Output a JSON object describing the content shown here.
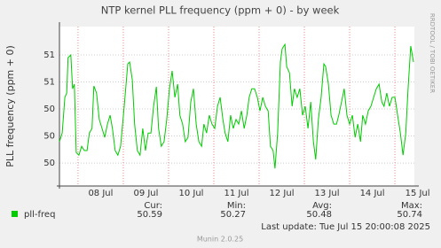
{
  "chart_data": {
    "type": "line",
    "title": "NTP kernel PLL frequency (ppm + 0) - by week",
    "y_label": "PLL frequency (ppm + 0)",
    "side_text": "RRDTOOL / TOBI OETIKER",
    "footer": "Munin 2.0.25",
    "last_update": "Last update: Tue Jul 15 20:00:08 2025",
    "xlim": [
      7.59,
      15.43
    ],
    "xticks": [
      {
        "value": 8.5,
        "label": "08 Jul"
      },
      {
        "value": 9.5,
        "label": "09 Jul"
      },
      {
        "value": 10.5,
        "label": "10 Jul"
      },
      {
        "value": 11.5,
        "label": "11 Jul"
      },
      {
        "value": 12.5,
        "label": "12 Jul"
      },
      {
        "value": 13.5,
        "label": "13 Jul"
      },
      {
        "value": 14.5,
        "label": "14 Jul"
      },
      {
        "value": 15.5,
        "label": "15 Jul"
      }
    ],
    "xgrid": [
      8,
      9,
      10,
      11,
      12,
      13,
      14,
      15
    ],
    "ylim": [
      50.215,
      50.805
    ],
    "yticks": [
      {
        "value": 50.7,
        "label": "51"
      },
      {
        "value": 50.6,
        "label": "51"
      },
      {
        "value": 50.5,
        "label": "50"
      },
      {
        "value": 50.4,
        "label": "50"
      },
      {
        "value": 50.3,
        "label": "50"
      }
    ],
    "grid": true,
    "x": [
      7.59,
      7.65,
      7.71,
      7.75,
      7.78,
      7.84,
      7.88,
      7.92,
      7.96,
      8.02,
      8.08,
      8.14,
      8.2,
      8.25,
      8.31,
      8.35,
      8.41,
      8.47,
      8.53,
      8.59,
      8.65,
      8.71,
      8.76,
      8.82,
      8.88,
      8.94,
      9.02,
      9.1,
      9.14,
      9.2,
      9.25,
      9.31,
      9.37,
      9.43,
      9.49,
      9.55,
      9.61,
      9.67,
      9.73,
      9.78,
      9.84,
      9.9,
      9.96,
      10.02,
      10.08,
      10.14,
      10.2,
      10.25,
      10.31,
      10.37,
      10.43,
      10.49,
      10.55,
      10.61,
      10.67,
      10.73,
      10.78,
      10.84,
      10.9,
      10.96,
      11.02,
      11.08,
      11.14,
      11.2,
      11.25,
      11.31,
      11.37,
      11.43,
      11.49,
      11.55,
      11.61,
      11.67,
      11.73,
      11.78,
      11.84,
      11.9,
      11.96,
      12.02,
      12.08,
      12.14,
      12.2,
      12.25,
      12.31,
      12.35,
      12.41,
      12.47,
      12.51,
      12.57,
      12.61,
      12.67,
      12.73,
      12.78,
      12.84,
      12.9,
      12.96,
      13.02,
      13.08,
      13.14,
      13.2,
      13.25,
      13.31,
      13.37,
      13.43,
      13.47,
      13.53,
      13.59,
      13.65,
      13.71,
      13.76,
      13.82,
      13.88,
      13.94,
      14.0,
      14.06,
      14.12,
      14.18,
      14.24,
      14.29,
      14.35,
      14.41,
      14.47,
      14.53,
      14.59,
      14.65,
      14.71,
      14.76,
      14.82,
      14.88,
      14.94,
      15.0,
      15.06,
      15.12,
      15.18,
      15.24,
      15.29,
      15.35,
      15.41
    ],
    "series": [
      {
        "name": "pll-freq",
        "color": "#00cc00",
        "values": [
          50.379,
          50.411,
          50.543,
          50.559,
          50.69,
          50.7,
          50.575,
          50.592,
          50.339,
          50.329,
          50.362,
          50.346,
          50.346,
          50.411,
          50.428,
          50.585,
          50.559,
          50.461,
          50.428,
          50.395,
          50.444,
          50.477,
          50.428,
          50.346,
          50.329,
          50.362,
          50.51,
          50.667,
          50.674,
          50.608,
          50.444,
          50.346,
          50.329,
          50.428,
          50.346,
          50.411,
          50.411,
          50.51,
          50.582,
          50.428,
          50.362,
          50.379,
          50.461,
          50.575,
          50.641,
          50.543,
          50.592,
          50.477,
          50.444,
          50.379,
          50.395,
          50.526,
          50.575,
          50.444,
          50.379,
          50.362,
          50.444,
          50.411,
          50.477,
          50.444,
          50.428,
          50.51,
          50.543,
          50.461,
          50.411,
          50.379,
          50.477,
          50.428,
          50.461,
          50.444,
          50.493,
          50.428,
          50.477,
          50.543,
          50.575,
          50.575,
          50.543,
          50.493,
          50.543,
          50.51,
          50.493,
          50.362,
          50.346,
          50.28,
          50.411,
          50.674,
          50.723,
          50.739,
          50.657,
          50.634,
          50.51,
          50.575,
          50.543,
          50.575,
          50.477,
          50.51,
          50.428,
          50.526,
          50.379,
          50.313,
          50.461,
          50.543,
          50.667,
          50.657,
          50.592,
          50.477,
          50.444,
          50.444,
          50.477,
          50.526,
          50.575,
          50.477,
          50.444,
          50.477,
          50.395,
          50.444,
          50.379,
          50.477,
          50.444,
          50.493,
          50.51,
          50.543,
          50.575,
          50.592,
          50.526,
          50.51,
          50.559,
          50.51,
          50.543,
          50.543,
          50.477,
          50.411,
          50.329,
          50.411,
          50.575,
          50.733,
          50.674
        ],
        "stats": {
          "Cur:": 50.59,
          "Min:": 50.27,
          "Avg:": 50.48,
          "Max:": 50.74
        }
      }
    ]
  }
}
